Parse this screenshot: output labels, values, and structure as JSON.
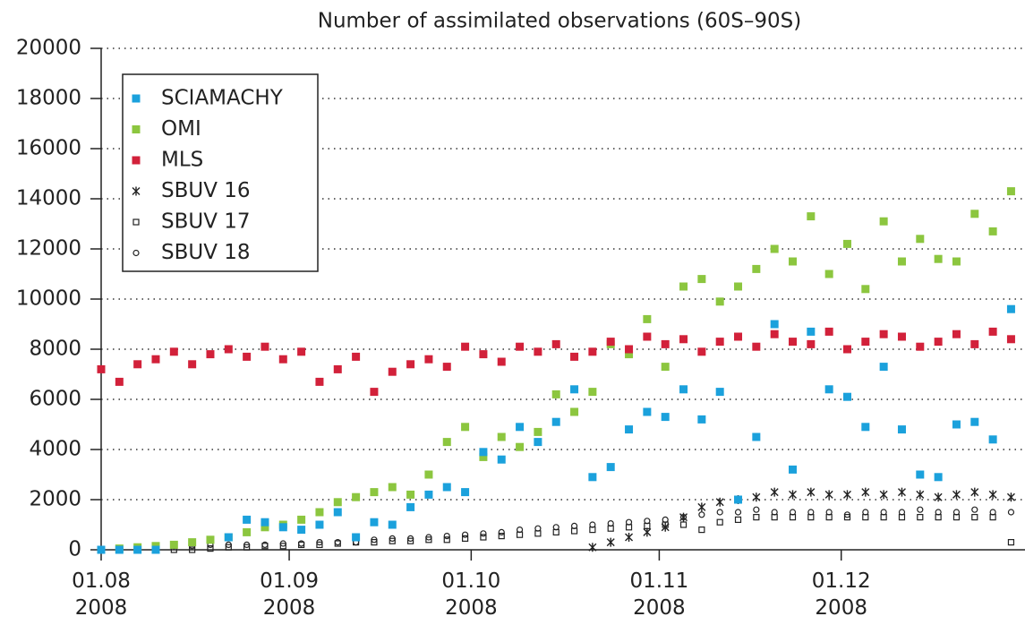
{
  "chart_data": {
    "type": "scatter",
    "title": "Number of assimilated observations (60S–90S)",
    "x": [
      "2008-08-01",
      "2008-08-04",
      "2008-08-07",
      "2008-08-10",
      "2008-08-13",
      "2008-08-16",
      "2008-08-19",
      "2008-08-22",
      "2008-08-25",
      "2008-08-28",
      "2008-08-31",
      "2008-09-03",
      "2008-09-06",
      "2008-09-09",
      "2008-09-12",
      "2008-09-15",
      "2008-09-18",
      "2008-09-21",
      "2008-09-24",
      "2008-09-27",
      "2008-09-30",
      "2008-10-03",
      "2008-10-06",
      "2008-10-09",
      "2008-10-12",
      "2008-10-15",
      "2008-10-18",
      "2008-10-21",
      "2008-10-24",
      "2008-10-27",
      "2008-10-30",
      "2008-11-02",
      "2008-11-05",
      "2008-11-08",
      "2008-11-11",
      "2008-11-14",
      "2008-11-17",
      "2008-11-20",
      "2008-11-23",
      "2008-11-26",
      "2008-11-29",
      "2008-12-02",
      "2008-12-05",
      "2008-12-08",
      "2008-12-11",
      "2008-12-14",
      "2008-12-17",
      "2008-12-20",
      "2008-12-23",
      "2008-12-26",
      "2008-12-29"
    ],
    "xlim": [
      "2008-08-01",
      "2008-12-31"
    ],
    "xticks": [
      {
        "value": "2008-08-01",
        "label": "01.08\n2008"
      },
      {
        "value": "2008-09-01",
        "label": "01.09\n2008"
      },
      {
        "value": "2008-10-01",
        "label": "01.10\n2008"
      },
      {
        "value": "2008-11-01",
        "label": "01.11\n2008"
      },
      {
        "value": "2008-12-01",
        "label": "01.12\n2008"
      }
    ],
    "ylim": [
      0,
      20000
    ],
    "yticks": [
      0,
      2000,
      4000,
      6000,
      8000,
      10000,
      12000,
      14000,
      16000,
      18000,
      20000
    ],
    "grid": true,
    "legend": "upper left",
    "series": [
      {
        "name": "SCIAMACHY",
        "color": "#1ba1dc",
        "marker": "square",
        "values": [
          0,
          0,
          0,
          0,
          null,
          null,
          null,
          500,
          1200,
          1100,
          900,
          800,
          1000,
          1500,
          500,
          1100,
          1000,
          1700,
          2200,
          2500,
          2300,
          3900,
          3600,
          4900,
          4300,
          5100,
          6400,
          2900,
          3300,
          4800,
          5500,
          5300,
          6400,
          5200,
          6300,
          2000,
          4500,
          9000,
          3200,
          8700,
          6400,
          6100,
          4900,
          7300,
          4800,
          3000,
          2900,
          5000,
          5100,
          4400,
          9600
        ]
      },
      {
        "name": "OMI",
        "color": "#8cc63f",
        "marker": "square",
        "values": [
          0,
          50,
          100,
          150,
          200,
          300,
          400,
          500,
          700,
          900,
          1000,
          1200,
          1500,
          1900,
          2100,
          2300,
          2500,
          2200,
          3000,
          4300,
          4900,
          3700,
          4500,
          4100,
          4700,
          6200,
          5500,
          6300,
          8200,
          7800,
          9200,
          7300,
          10500,
          10800,
          9900,
          10500,
          11200,
          12000,
          11500,
          13300,
          11000,
          12200,
          10400,
          13100,
          11500,
          12400,
          11600,
          11500,
          13400,
          12700,
          14300
        ]
      },
      {
        "name": "MLS",
        "color": "#d2213a",
        "marker": "square",
        "values": [
          7200,
          6700,
          7400,
          7600,
          7900,
          7400,
          7800,
          8000,
          7700,
          8100,
          7600,
          7900,
          6700,
          7200,
          7700,
          6300,
          7100,
          7400,
          7600,
          7300,
          8100,
          7800,
          7500,
          8100,
          7900,
          8200,
          7700,
          7900,
          8300,
          8000,
          8500,
          8200,
          8400,
          7900,
          8300,
          8500,
          8100,
          8600,
          8300,
          8200,
          8700,
          8000,
          8300,
          8600,
          8500,
          8100,
          8300,
          8600,
          8200,
          8700,
          8400
        ]
      },
      {
        "name": "SBUV 16",
        "color": "#222222",
        "marker": "star",
        "values": [
          null,
          null,
          null,
          null,
          null,
          null,
          null,
          null,
          null,
          null,
          null,
          null,
          null,
          null,
          null,
          null,
          null,
          null,
          null,
          null,
          null,
          null,
          null,
          null,
          null,
          null,
          null,
          100,
          300,
          500,
          700,
          900,
          1300,
          1700,
          1900,
          2000,
          2100,
          2300,
          2200,
          2300,
          2200,
          2200,
          2300,
          2200,
          2300,
          2200,
          2100,
          2200,
          2300,
          2200,
          2100
        ]
      },
      {
        "name": "SBUV 17",
        "color": "#222222",
        "marker": "open-square",
        "values": [
          0,
          0,
          0,
          0,
          0,
          0,
          50,
          100,
          100,
          150,
          150,
          200,
          200,
          250,
          300,
          300,
          350,
          350,
          400,
          400,
          450,
          500,
          550,
          600,
          650,
          700,
          750,
          800,
          850,
          900,
          950,
          1000,
          1000,
          800,
          1100,
          1200,
          1300,
          1300,
          1300,
          1300,
          1300,
          1300,
          1300,
          1300,
          1300,
          1300,
          1300,
          1300,
          1300,
          1300,
          300
        ]
      },
      {
        "name": "SBUV 18",
        "color": "#222222",
        "marker": "circle",
        "values": [
          0,
          0,
          50,
          100,
          150,
          150,
          200,
          200,
          200,
          200,
          250,
          250,
          300,
          300,
          300,
          400,
          450,
          450,
          500,
          550,
          600,
          650,
          700,
          800,
          850,
          900,
          950,
          1000,
          1050,
          1100,
          1150,
          1200,
          1300,
          1400,
          1500,
          1500,
          1600,
          1500,
          1500,
          1500,
          1500,
          1400,
          1500,
          1500,
          1500,
          1600,
          1500,
          1500,
          1600,
          1500,
          1500
        ]
      }
    ]
  }
}
